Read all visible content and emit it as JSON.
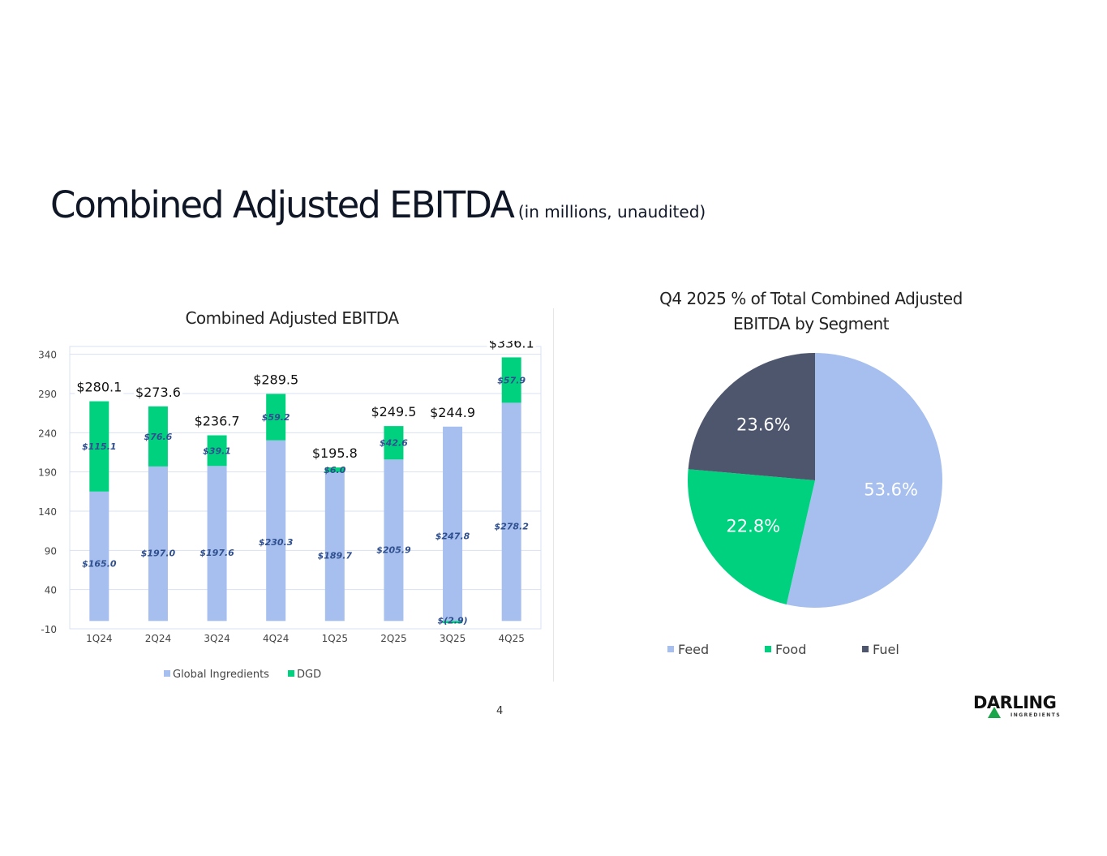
{
  "title": {
    "main": "Combined Adjusted EBITDA",
    "sub": "(in millions, unaudited)"
  },
  "page_number": "4",
  "logo": {
    "text": "DARLING",
    "subtext": "INGREDIENTS"
  },
  "colors": {
    "global_ingredients": "#a6bfee",
    "dgd": "#00d17f",
    "feed": "#a6bfee",
    "food": "#00d17f",
    "fuel": "#4d566d"
  },
  "chart_data": [
    {
      "type": "bar",
      "stacked": true,
      "title": "Combined Adjusted EBITDA",
      "categories": [
        "1Q24",
        "2Q24",
        "3Q24",
        "4Q24",
        "1Q25",
        "2Q25",
        "3Q25",
        "4Q25"
      ],
      "series": [
        {
          "name": "Global Ingredients",
          "values": [
            165.0,
            197.0,
            197.6,
            230.3,
            189.7,
            205.9,
            247.8,
            278.2
          ],
          "labels": [
            "$165.0",
            "$197.0",
            "$197.6",
            "$230.3",
            "$189.7",
            "$205.9",
            "$247.8",
            "$278.2"
          ]
        },
        {
          "name": "DGD",
          "values": [
            115.1,
            76.6,
            39.1,
            59.2,
            6.0,
            42.6,
            -2.9,
            57.9
          ],
          "labels": [
            "$115.1",
            "$76.6",
            "$39.1",
            "$59.2",
            "$6.0",
            "$42.6",
            "$(2.9)",
            "$57.9"
          ]
        }
      ],
      "totals": [
        "$280.1",
        "$273.6",
        "$236.7",
        "$289.5",
        "$195.8",
        "$249.5",
        "$244.9",
        "$336.1"
      ],
      "yticks": [
        "-10",
        "40",
        "90",
        "140",
        "190",
        "240",
        "290",
        "340"
      ],
      "ylim": [
        -10,
        350
      ],
      "grid": true,
      "legend": "bottom"
    },
    {
      "type": "pie",
      "title": "Q4 2025 % of Total Combined Adjusted EBITDA by Segment",
      "slices": [
        {
          "name": "Feed",
          "value": 53.6,
          "label": "53.6%"
        },
        {
          "name": "Food",
          "value": 22.8,
          "label": "22.8%"
        },
        {
          "name": "Fuel",
          "value": 23.6,
          "label": "23.6%"
        }
      ],
      "legend": "bottom"
    }
  ]
}
